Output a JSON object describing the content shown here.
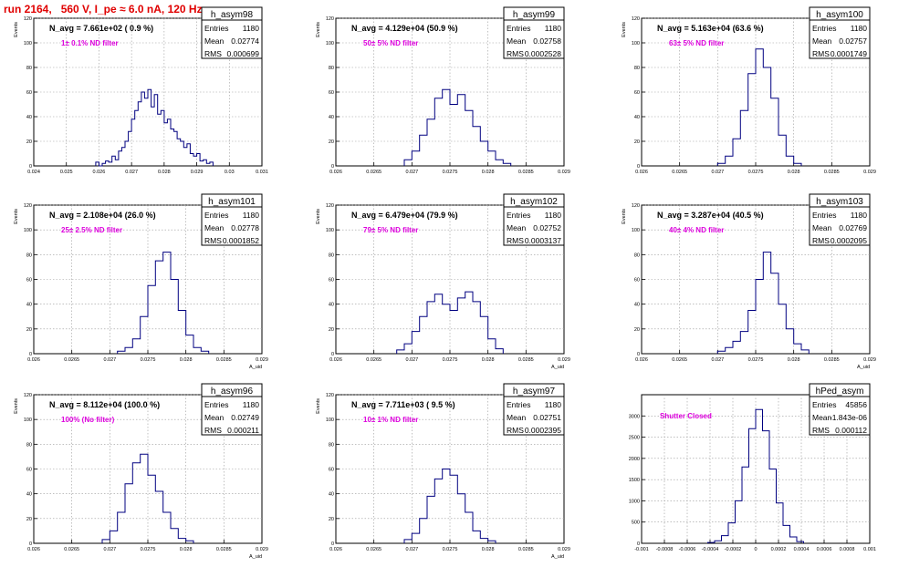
{
  "page": {
    "title": "run 2164,   560 V, I_pe ≈ 6.0 nA, 120 Hz"
  },
  "style": {
    "line_color": "#000080",
    "note_color": "#dd00dd",
    "title_color": "#e00000",
    "grid_color": "#9a9a9a"
  },
  "chart_data": [
    {
      "type": "bar",
      "name": "h_asym98",
      "avg_text": "N_avg = 7.661e+02 ( 0.9 %)",
      "note": "1± 0.1% ND filter",
      "stats": [
        [
          "Entries",
          "1180"
        ],
        [
          "Mean",
          "0.02774"
        ],
        [
          "RMS",
          "0.000699"
        ]
      ],
      "ylabel": "Events",
      "xlabel": "",
      "xlim": [
        0.024,
        0.031
      ],
      "ylim": [
        0,
        120
      ],
      "xticks": [
        "0.024",
        "0.025",
        "0.026",
        "0.027",
        "0.028",
        "0.029",
        "0.03",
        "0.031"
      ],
      "xtick_values": [
        0.024,
        0.025,
        0.026,
        0.027,
        0.028,
        0.029,
        0.03,
        0.031
      ],
      "yticks": [
        0,
        20,
        40,
        60,
        80,
        100,
        120
      ],
      "x": [
        0.02595,
        0.02605,
        0.02615,
        0.02625,
        0.02635,
        0.02645,
        0.02655,
        0.02665,
        0.02675,
        0.02685,
        0.02695,
        0.02705,
        0.02715,
        0.02725,
        0.02735,
        0.02745,
        0.02755,
        0.02765,
        0.02775,
        0.02785,
        0.02795,
        0.02805,
        0.02815,
        0.02825,
        0.02835,
        0.02845,
        0.02855,
        0.02865,
        0.02875,
        0.02885,
        0.02895,
        0.02905,
        0.02915,
        0.02925,
        0.02935,
        0.02945
      ],
      "values": [
        3,
        0,
        2,
        4,
        3,
        8,
        5,
        12,
        15,
        20,
        28,
        38,
        45,
        52,
        60,
        55,
        62,
        48,
        58,
        42,
        45,
        35,
        38,
        30,
        28,
        22,
        20,
        15,
        18,
        10,
        8,
        10,
        4,
        5,
        2,
        3
      ]
    },
    {
      "type": "bar",
      "name": "h_asym99",
      "avg_text": "N_avg = 4.129e+04 (50.9 %)",
      "note": "50± 5% ND filter",
      "stats": [
        [
          "Entries",
          "1180"
        ],
        [
          "Mean",
          "0.02758"
        ],
        [
          "RMS",
          "0.0002528"
        ]
      ],
      "ylabel": "Events",
      "xlabel": "",
      "xlim": [
        0.026,
        0.029
      ],
      "ylim": [
        0,
        120
      ],
      "xticks": [
        "0.026",
        "0.0265",
        "0.027",
        "0.0275",
        "0.028",
        "0.0285",
        "0.029"
      ],
      "xtick_values": [
        0.026,
        0.0265,
        0.027,
        0.0275,
        0.028,
        0.0285,
        0.029
      ],
      "yticks": [
        0,
        20,
        40,
        60,
        80,
        100,
        120
      ],
      "x": [
        0.02695,
        0.02705,
        0.02715,
        0.02725,
        0.02735,
        0.02745,
        0.02755,
        0.02765,
        0.02775,
        0.02785,
        0.02795,
        0.02805,
        0.02815,
        0.02825
      ],
      "values": [
        5,
        12,
        25,
        38,
        55,
        62,
        50,
        58,
        45,
        32,
        20,
        12,
        5,
        2
      ]
    },
    {
      "type": "bar",
      "name": "h_asym100",
      "avg_text": "N_avg = 5.163e+04 (63.6 %)",
      "note": "63± 5% ND filter",
      "stats": [
        [
          "Entries",
          "1180"
        ],
        [
          "Mean",
          "0.02757"
        ],
        [
          "RMS",
          "0.0001749"
        ]
      ],
      "ylabel": "Events",
      "xlabel": "",
      "xlim": [
        0.026,
        0.029
      ],
      "ylim": [
        0,
        120
      ],
      "xticks": [
        "0.026",
        "0.0265",
        "0.027",
        "0.0275",
        "0.028",
        "0.0285",
        "0.029"
      ],
      "xtick_values": [
        0.026,
        0.0265,
        0.027,
        0.0275,
        0.028,
        0.0285,
        0.029
      ],
      "yticks": [
        0,
        20,
        40,
        60,
        80,
        100,
        120
      ],
      "x": [
        0.02705,
        0.02715,
        0.02725,
        0.02735,
        0.02745,
        0.02755,
        0.02765,
        0.02775,
        0.02785,
        0.02795,
        0.02805
      ],
      "values": [
        2,
        8,
        22,
        45,
        75,
        95,
        80,
        55,
        25,
        8,
        2
      ]
    },
    {
      "type": "bar",
      "name": "h_asym101",
      "avg_text": "N_avg = 2.108e+04 (26.0 %)",
      "note": "25± 2.5% ND filter",
      "stats": [
        [
          "Entries",
          "1180"
        ],
        [
          "Mean",
          "0.02778"
        ],
        [
          "RMS",
          "0.0001852"
        ]
      ],
      "ylabel": "Events",
      "xlabel": "A_uid",
      "xlim": [
        0.026,
        0.029
      ],
      "ylim": [
        0,
        120
      ],
      "xticks": [
        "0.026",
        "0.0265",
        "0.027",
        "0.0275",
        "0.028",
        "0.0285",
        "0.029"
      ],
      "xtick_values": [
        0.026,
        0.0265,
        0.027,
        0.0275,
        0.028,
        0.0285,
        0.029
      ],
      "yticks": [
        0,
        20,
        40,
        60,
        80,
        100,
        120
      ],
      "x": [
        0.02715,
        0.02725,
        0.02735,
        0.02745,
        0.02755,
        0.02765,
        0.02775,
        0.02785,
        0.02795,
        0.02805,
        0.02815,
        0.02825
      ],
      "values": [
        2,
        5,
        12,
        30,
        55,
        75,
        82,
        60,
        35,
        15,
        5,
        2
      ]
    },
    {
      "type": "bar",
      "name": "h_asym102",
      "avg_text": "N_avg = 6.479e+04 (79.9 %)",
      "note": "79± 5% ND filter",
      "stats": [
        [
          "Entries",
          "1180"
        ],
        [
          "Mean",
          "0.02752"
        ],
        [
          "RMS",
          "0.0003137"
        ]
      ],
      "ylabel": "Events",
      "xlabel": "A_uid",
      "xlim": [
        0.026,
        0.029
      ],
      "ylim": [
        0,
        120
      ],
      "xticks": [
        "0.026",
        "0.0265",
        "0.027",
        "0.0275",
        "0.028",
        "0.0285",
        "0.029"
      ],
      "xtick_values": [
        0.026,
        0.0265,
        0.027,
        0.0275,
        0.028,
        0.0285,
        0.029
      ],
      "yticks": [
        0,
        20,
        40,
        60,
        80,
        100,
        120
      ],
      "x": [
        0.02685,
        0.02695,
        0.02705,
        0.02715,
        0.02725,
        0.02735,
        0.02745,
        0.02755,
        0.02765,
        0.02775,
        0.02785,
        0.02795,
        0.02805,
        0.02815
      ],
      "values": [
        3,
        8,
        18,
        30,
        42,
        48,
        40,
        35,
        45,
        50,
        42,
        30,
        12,
        4
      ]
    },
    {
      "type": "bar",
      "name": "h_asym103",
      "avg_text": "N_avg = 3.287e+04 (40.5 %)",
      "note": "40± 4% ND filter",
      "stats": [
        [
          "Entries",
          "1180"
        ],
        [
          "Mean",
          "0.02769"
        ],
        [
          "RMS",
          "0.0002095"
        ]
      ],
      "ylabel": "Events",
      "xlabel": "A_uid",
      "xlim": [
        0.026,
        0.029
      ],
      "ylim": [
        0,
        120
      ],
      "xticks": [
        "0.026",
        "0.0265",
        "0.027",
        "0.0275",
        "0.028",
        "0.0285",
        "0.029"
      ],
      "xtick_values": [
        0.026,
        0.0265,
        0.027,
        0.0275,
        0.028,
        0.0285,
        0.029
      ],
      "yticks": [
        0,
        20,
        40,
        60,
        80,
        100,
        120
      ],
      "x": [
        0.02705,
        0.02715,
        0.02725,
        0.02735,
        0.02745,
        0.02755,
        0.02765,
        0.02775,
        0.02785,
        0.02795,
        0.02805,
        0.02815
      ],
      "values": [
        2,
        5,
        10,
        18,
        35,
        60,
        82,
        65,
        40,
        20,
        8,
        3
      ]
    },
    {
      "type": "bar",
      "name": "h_asym96",
      "avg_text": "N_avg = 8.112e+04 (100.0 %)",
      "note": "100% (No filter)",
      "stats": [
        [
          "Entries",
          "1180"
        ],
        [
          "Mean",
          "0.02749"
        ],
        [
          "RMS",
          "0.000211"
        ]
      ],
      "ylabel": "Events",
      "xlabel": "A_uid",
      "xlim": [
        0.026,
        0.029
      ],
      "ylim": [
        0,
        120
      ],
      "xticks": [
        "0.026",
        "0.0265",
        "0.027",
        "0.0275",
        "0.028",
        "0.0285",
        "0.029"
      ],
      "xtick_values": [
        0.026,
        0.0265,
        0.027,
        0.0275,
        0.028,
        0.0285,
        0.029
      ],
      "yticks": [
        0,
        20,
        40,
        60,
        80,
        100,
        120
      ],
      "x": [
        0.02695,
        0.02705,
        0.02715,
        0.02725,
        0.02735,
        0.02745,
        0.02755,
        0.02765,
        0.02775,
        0.02785,
        0.02795,
        0.02805
      ],
      "values": [
        3,
        10,
        25,
        48,
        65,
        72,
        55,
        42,
        25,
        12,
        4,
        2
      ]
    },
    {
      "type": "bar",
      "name": "h_asym97",
      "avg_text": "N_avg = 7.711e+03 ( 9.5 %)",
      "note": "10± 1% ND filter",
      "stats": [
        [
          "Entries",
          "1180"
        ],
        [
          "Mean",
          "0.02751"
        ],
        [
          "RMS",
          "0.0002395"
        ]
      ],
      "ylabel": "Events",
      "xlabel": "A_uid",
      "xlim": [
        0.026,
        0.029
      ],
      "ylim": [
        0,
        120
      ],
      "xticks": [
        "0.026",
        "0.0265",
        "0.027",
        "0.0275",
        "0.028",
        "0.0285",
        "0.029"
      ],
      "xtick_values": [
        0.026,
        0.0265,
        0.027,
        0.0275,
        0.028,
        0.0285,
        0.029
      ],
      "yticks": [
        0,
        20,
        40,
        60,
        80,
        100,
        120
      ],
      "x": [
        0.02695,
        0.02705,
        0.02715,
        0.02725,
        0.02735,
        0.02745,
        0.02755,
        0.02765,
        0.02775,
        0.02785,
        0.02795,
        0.02805
      ],
      "values": [
        3,
        8,
        20,
        38,
        52,
        60,
        55,
        40,
        25,
        10,
        4,
        2
      ]
    },
    {
      "type": "bar",
      "name": "hPed_asym",
      "avg_text": "",
      "note": "Shutter Closed",
      "stats": [
        [
          "Entries",
          "45856"
        ],
        [
          "Mean",
          "-1.843e-06"
        ],
        [
          "RMS",
          "0.000112"
        ]
      ],
      "ylabel": "",
      "xlabel": "",
      "xlim": [
        -0.001,
        0.001
      ],
      "ylim": [
        0,
        3500
      ],
      "xticks": [
        "-0.001",
        "-0.0008",
        "-0.0006",
        "-0.0004",
        "-0.0002",
        "0",
        "0.0002",
        "0.0004",
        "0.0006",
        "0.0008",
        "0.001"
      ],
      "xtick_values": [
        -0.001,
        -0.0008,
        -0.0006,
        -0.0004,
        -0.0002,
        0,
        0.0002,
        0.0004,
        0.0006,
        0.0008,
        0.001
      ],
      "yticks": [
        0,
        500,
        1000,
        1500,
        2000,
        2500,
        3000
      ],
      "x": [
        -0.00039,
        -0.00033,
        -0.00027,
        -0.00021,
        -0.00015,
        -9e-05,
        -3e-05,
        3e-05,
        9e-05,
        0.00015,
        0.00021,
        0.00027,
        0.00033,
        0.00039
      ],
      "values": [
        20,
        60,
        180,
        480,
        1000,
        1800,
        2700,
        3150,
        2650,
        1750,
        950,
        420,
        150,
        40
      ]
    }
  ]
}
